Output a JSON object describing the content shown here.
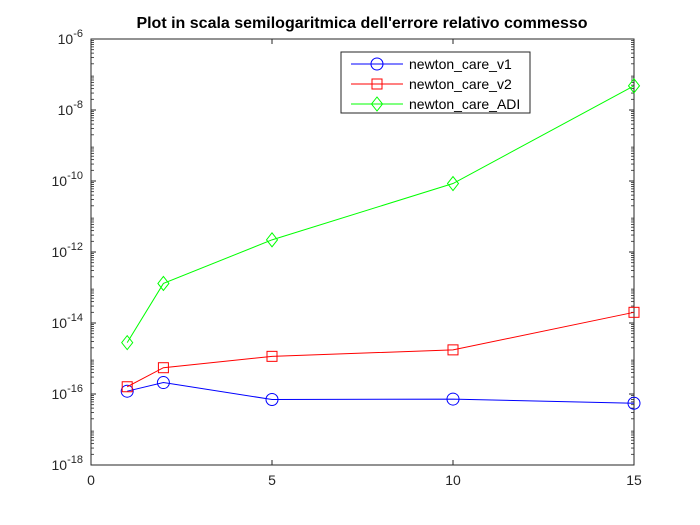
{
  "chart_data": {
    "type": "line",
    "title": "Plot in scala semilogaritmica dell'errore relativo commesso",
    "xlabel": "",
    "ylabel": "",
    "xlim": [
      0,
      15
    ],
    "ylim": [
      1e-18,
      1e-06
    ],
    "yscale": "log",
    "grid": false,
    "legend_position": "top-right",
    "x_ticks": [
      {
        "value": 0,
        "label": "0"
      },
      {
        "value": 5,
        "label": "5"
      },
      {
        "value": 10,
        "label": "10"
      },
      {
        "value": 15,
        "label": "15"
      }
    ],
    "y_ticks": [
      {
        "exp": -18,
        "base": "10",
        "sup": "-18"
      },
      {
        "exp": -16,
        "base": "10",
        "sup": "-16"
      },
      {
        "exp": -14,
        "base": "10",
        "sup": "-14"
      },
      {
        "exp": -12,
        "base": "10",
        "sup": "-12"
      },
      {
        "exp": -10,
        "base": "10",
        "sup": "-10"
      },
      {
        "exp": -8,
        "base": "10",
        "sup": "-8"
      },
      {
        "exp": -6,
        "base": "10",
        "sup": "-6"
      }
    ],
    "series": [
      {
        "name": "newton_care_v1",
        "color": "#0000ff",
        "marker": "circle",
        "x": [
          1,
          2,
          5,
          10,
          15
        ],
        "y": [
          1.2e-16,
          2.1e-16,
          7e-17,
          7.2e-17,
          5.5e-17
        ]
      },
      {
        "name": "newton_care_v2",
        "color": "#ff0000",
        "marker": "square",
        "x": [
          1,
          2,
          5,
          10,
          15
        ],
        "y": [
          1.6e-16,
          5.5e-16,
          1.15e-15,
          1.75e-15,
          2e-14
        ]
      },
      {
        "name": "newton_care_ADI",
        "color": "#00ff00",
        "marker": "diamond",
        "x": [
          1,
          2,
          5,
          10,
          15
        ],
        "y": [
          2.8e-15,
          1.3e-13,
          2.2e-12,
          8.5e-11,
          4.8e-08
        ]
      }
    ]
  }
}
